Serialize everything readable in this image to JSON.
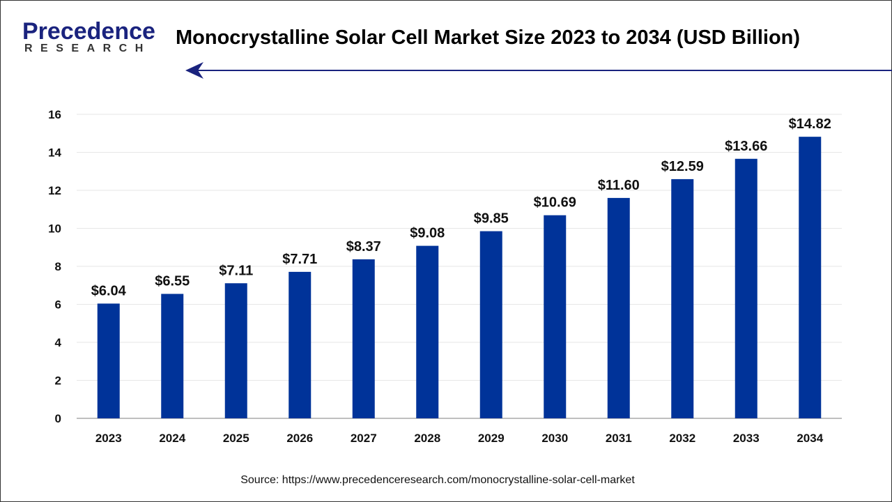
{
  "header": {
    "logo_text": "Precedence",
    "logo_subtext": "RESEARCH",
    "title": "Monocrystalline Solar Cell Market Size 2023 to 2034 (USD Billion)"
  },
  "footer": {
    "source": "Source: https://www.precedenceresearch.com/monocrystalline-solar-cell-market"
  },
  "chart_data": {
    "type": "bar",
    "title": "Monocrystalline Solar Cell Market Size 2023 to 2034 (USD Billion)",
    "xlabel": "",
    "ylabel": "",
    "categories": [
      "2023",
      "2024",
      "2025",
      "2026",
      "2027",
      "2028",
      "2029",
      "2030",
      "2031",
      "2032",
      "2033",
      "2034"
    ],
    "values": [
      6.04,
      6.55,
      7.11,
      7.71,
      8.37,
      9.08,
      9.85,
      10.69,
      11.6,
      12.59,
      13.66,
      14.82
    ],
    "data_labels": [
      "$6.04",
      "$6.55",
      "$7.11",
      "$7.71",
      "$8.37",
      "$9.08",
      "$9.85",
      "$10.69",
      "$11.60",
      "$12.59",
      "$13.66",
      "$14.82"
    ],
    "ylim": [
      0,
      16
    ],
    "yticks": [
      0,
      2,
      4,
      6,
      8,
      10,
      12,
      14,
      16
    ],
    "grid": true,
    "colors": {
      "bar": "#003399",
      "grid": "#e6e6e6",
      "axis": "#bfbfbf",
      "accent": "#1a237e"
    }
  }
}
